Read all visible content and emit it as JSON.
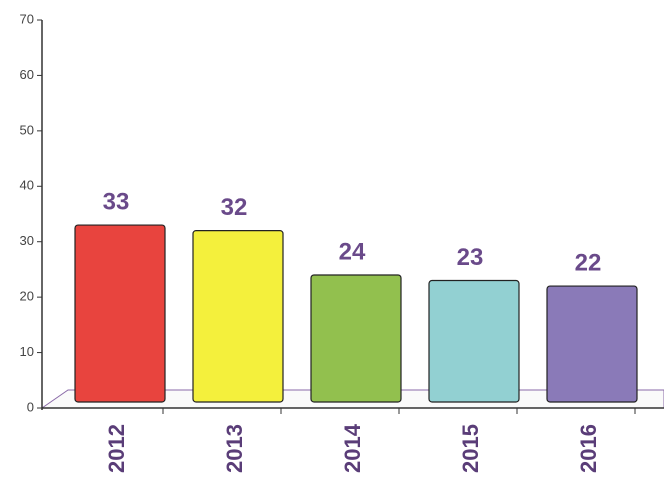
{
  "chart_data": {
    "type": "bar",
    "categories": [
      "2012",
      "2013",
      "2014",
      "2015",
      "2016"
    ],
    "values": [
      33,
      32,
      24,
      23,
      22
    ],
    "colors": [
      "#e8443e",
      "#f4f03c",
      "#92c04e",
      "#92d0d2",
      "#8a7ab8"
    ],
    "ylim": [
      0,
      70
    ],
    "yticks": [
      0,
      10,
      20,
      30,
      40,
      50,
      60,
      70
    ],
    "grid": false
  }
}
